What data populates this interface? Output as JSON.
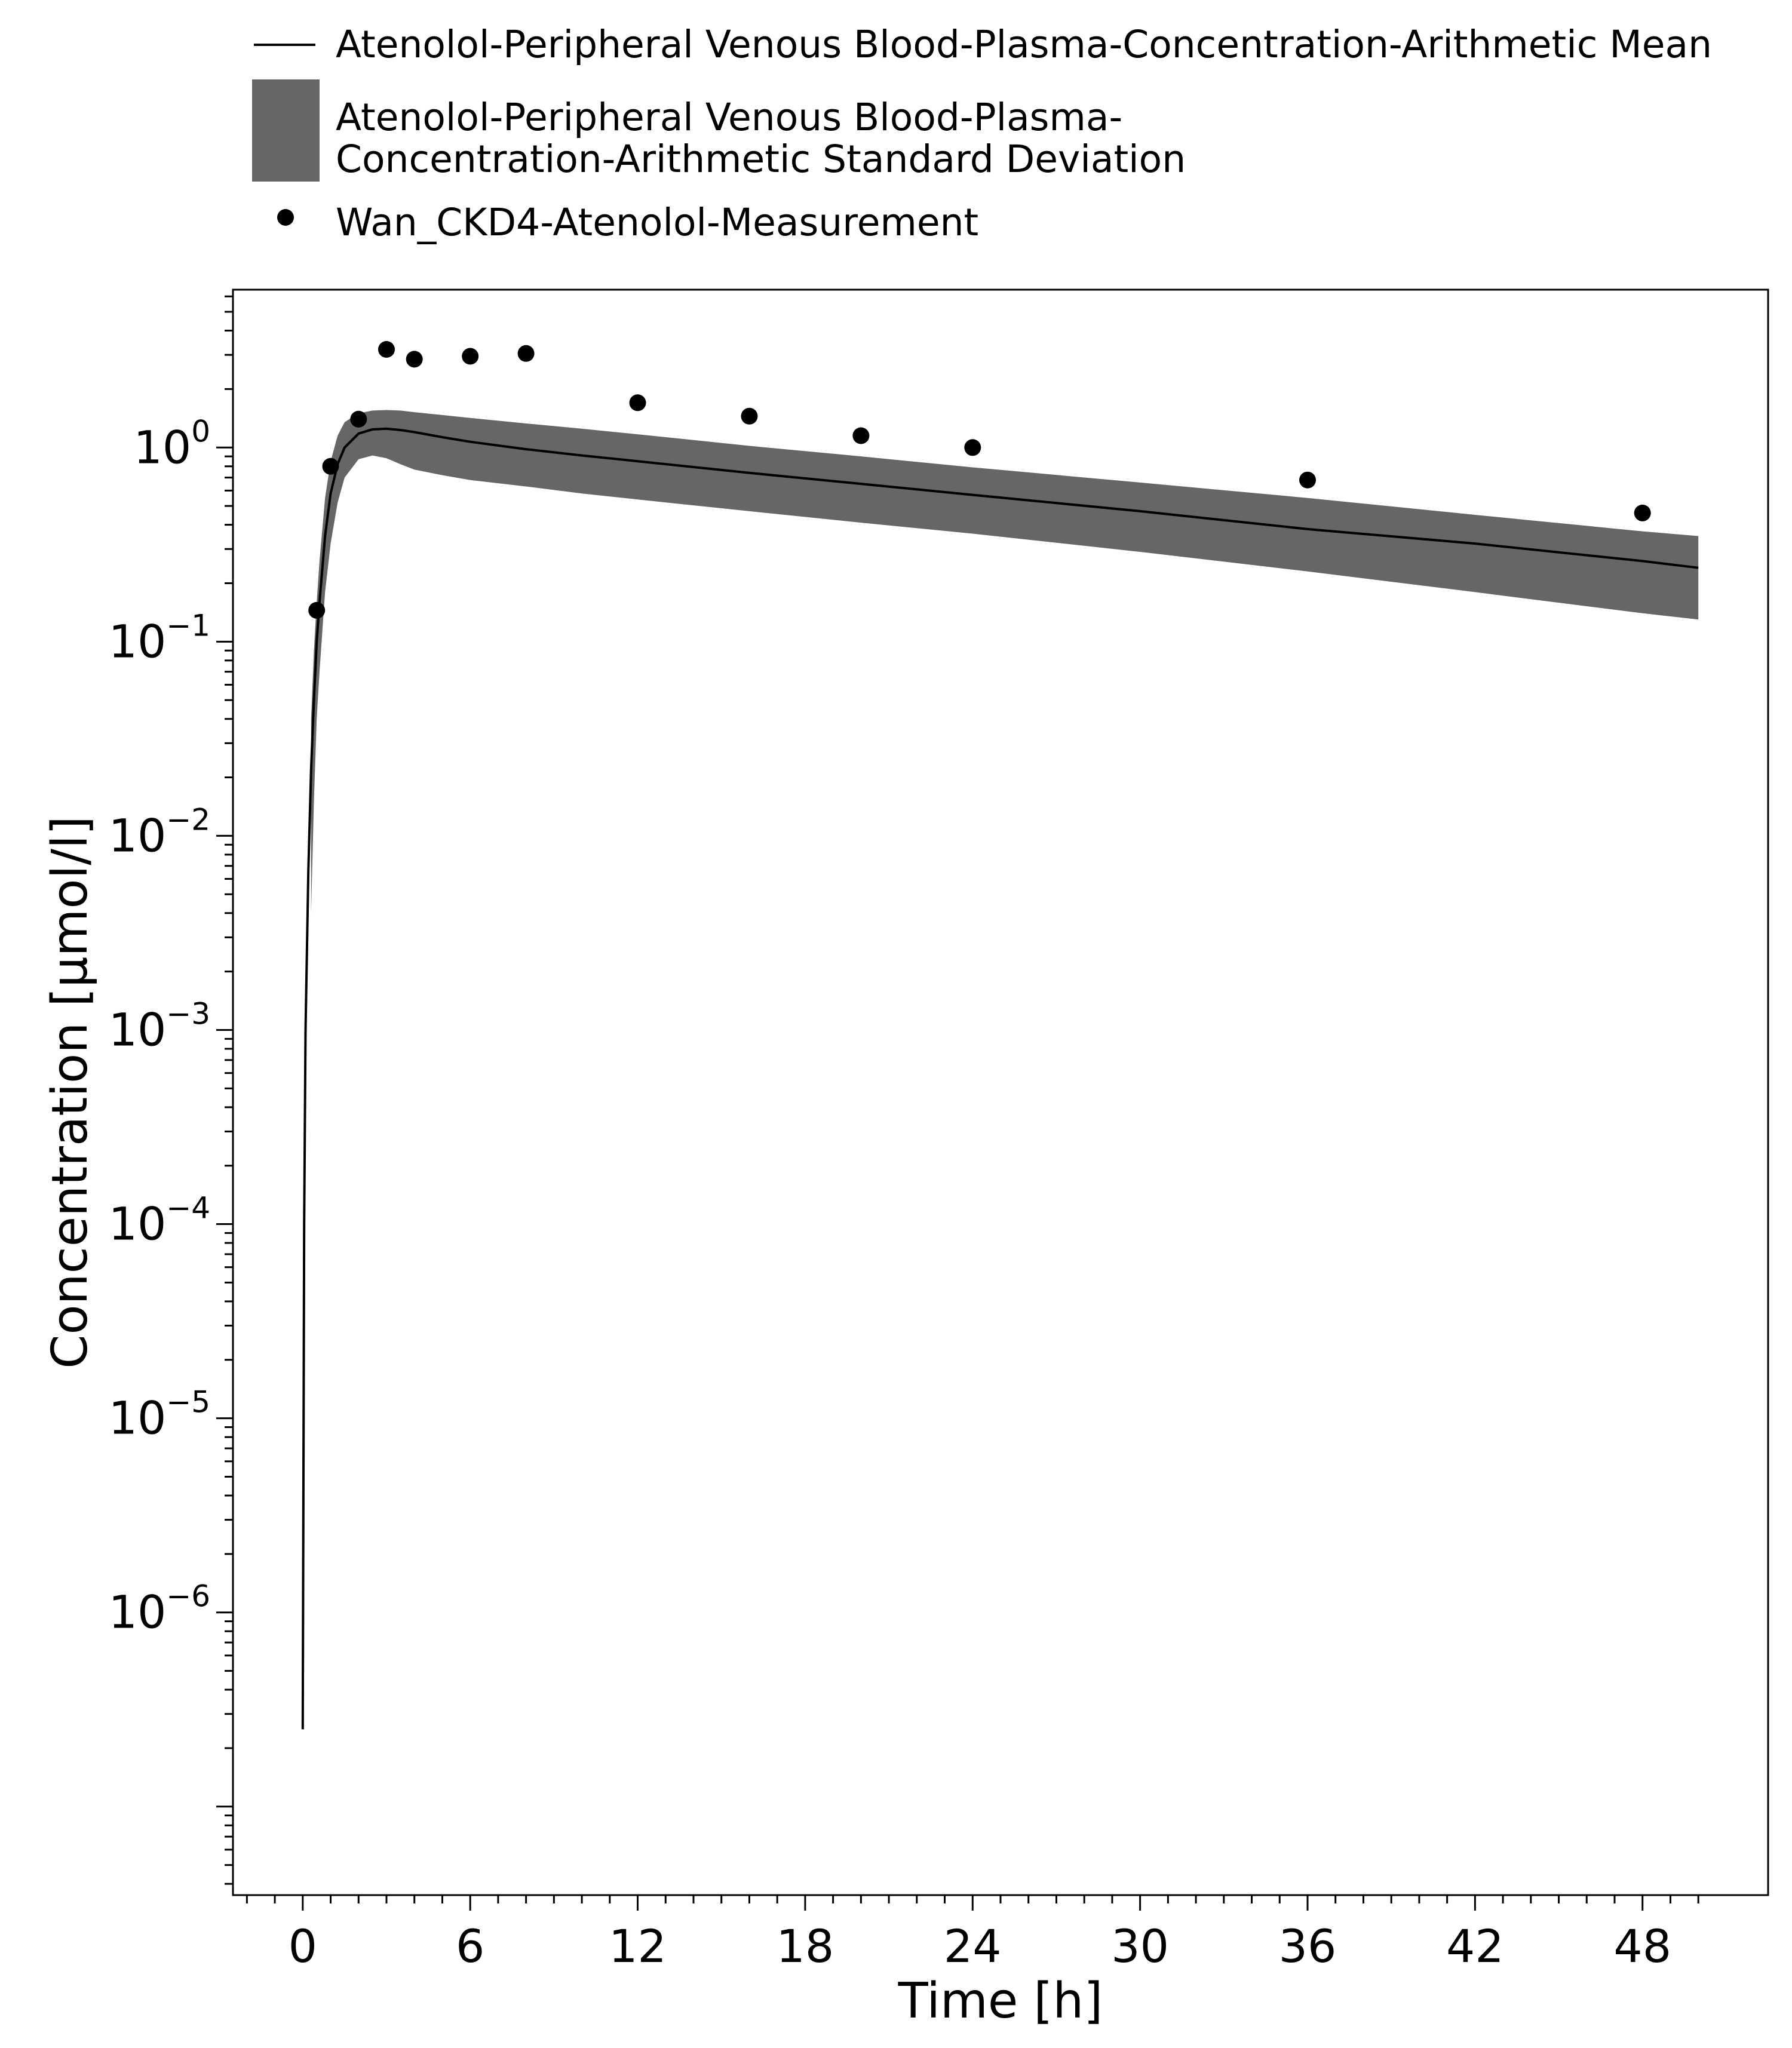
{
  "chart_data": {
    "type": "line",
    "xlabel": "Time [h]",
    "ylabel": "Concentration [µmol/l]",
    "x_scale": "linear",
    "y_scale": "log",
    "xlim": [
      -2.5,
      52.5
    ],
    "ylim": [
      3.5e-08,
      6.5
    ],
    "x_ticks": [
      0,
      6,
      12,
      18,
      24,
      30,
      36,
      42,
      48
    ],
    "y_ticks": [
      {
        "value": 1e-06,
        "base": "10",
        "exp": "−6"
      },
      {
        "value": 1e-05,
        "base": "10",
        "exp": "−5"
      },
      {
        "value": 0.0001,
        "base": "10",
        "exp": "−4"
      },
      {
        "value": 0.001,
        "base": "10",
        "exp": "−3"
      },
      {
        "value": 0.01,
        "base": "10",
        "exp": "−2"
      },
      {
        "value": 0.1,
        "base": "10",
        "exp": "−1"
      },
      {
        "value": 1,
        "base": "10",
        "exp": "0"
      }
    ],
    "grid": false,
    "legend_position": "top",
    "series": [
      {
        "name": "Atenolol-Peripheral Venous Blood-Plasma-Concentration-Arithmetic Mean",
        "type": "line",
        "color": "#000000",
        "x": [
          0,
          0.05,
          0.1,
          0.2,
          0.3,
          0.4,
          0.5,
          0.6,
          0.8,
          1.0,
          1.25,
          1.5,
          2.0,
          2.5,
          3.0,
          3.5,
          4,
          5,
          6,
          8,
          10,
          12,
          16,
          20,
          24,
          30,
          36,
          42,
          48,
          50
        ],
        "y": [
          2.5e-07,
          0.0001,
          0.001,
          0.0066,
          0.022,
          0.05,
          0.1,
          0.16,
          0.35,
          0.58,
          0.82,
          1.0,
          1.18,
          1.24,
          1.25,
          1.23,
          1.2,
          1.13,
          1.07,
          0.98,
          0.91,
          0.85,
          0.74,
          0.65,
          0.57,
          0.47,
          0.38,
          0.32,
          0.26,
          0.24
        ]
      },
      {
        "name": "Atenolol-Peripheral Venous Blood-Plasma-Concentration-Arithmetic Standard Deviation",
        "type": "band",
        "color": "#666666",
        "x": [
          0.3,
          0.4,
          0.5,
          0.6,
          0.8,
          1.0,
          1.25,
          1.5,
          2.0,
          2.5,
          3.0,
          3.5,
          4,
          5,
          6,
          8,
          10,
          12,
          16,
          20,
          24,
          30,
          36,
          42,
          48,
          50
        ],
        "upper": [
          0.04,
          0.09,
          0.16,
          0.26,
          0.55,
          0.85,
          1.15,
          1.35,
          1.5,
          1.55,
          1.56,
          1.55,
          1.52,
          1.47,
          1.42,
          1.33,
          1.25,
          1.17,
          1.02,
          0.9,
          0.79,
          0.66,
          0.55,
          0.45,
          0.37,
          0.35
        ],
        "lower": [
          0.004,
          0.015,
          0.04,
          0.07,
          0.18,
          0.32,
          0.52,
          0.7,
          0.87,
          0.91,
          0.88,
          0.82,
          0.77,
          0.72,
          0.68,
          0.63,
          0.58,
          0.54,
          0.47,
          0.41,
          0.36,
          0.29,
          0.23,
          0.18,
          0.14,
          0.13
        ]
      },
      {
        "name": "Wan_CKD4-Atenolol-Measurement",
        "type": "scatter",
        "color": "#000000",
        "x": [
          0.5,
          1,
          2,
          3,
          4,
          6,
          8,
          12,
          16,
          20,
          24,
          36,
          48
        ],
        "y": [
          0.145,
          0.8,
          1.4,
          3.2,
          2.85,
          2.95,
          3.05,
          1.7,
          1.45,
          1.15,
          1.0,
          0.68,
          0.46
        ]
      }
    ]
  }
}
